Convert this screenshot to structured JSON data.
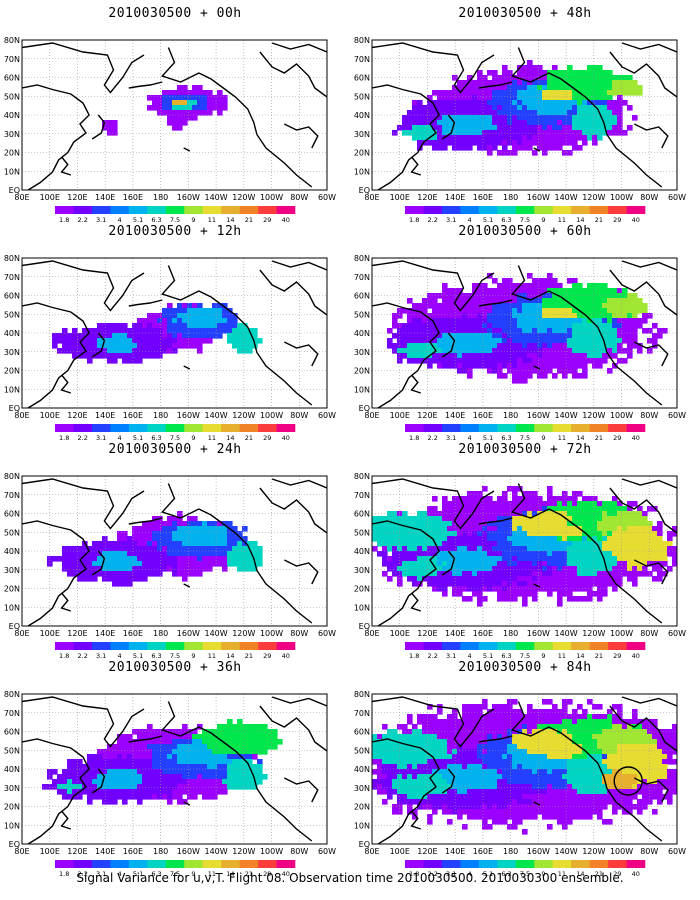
{
  "footer": "Signal Variance for u,v,T. Flight 08. Observation time 2010030500. 2010030300 ensemble.",
  "colorbar": {
    "labels": [
      "1.8",
      "2.2",
      "3.1",
      "4",
      "5.1",
      "6.3",
      "7.5",
      "9",
      "11",
      "14",
      "21",
      "29",
      "40"
    ],
    "colors": [
      "#9b00ff",
      "#7300ff",
      "#2340ff",
      "#0080ff",
      "#00b2ee",
      "#00d4c2",
      "#00e64d",
      "#a0e632",
      "#e6dc32",
      "#e6af2d",
      "#f08228",
      "#fa3c3c",
      "#f00082"
    ]
  },
  "axes": {
    "lon_ticks": [
      "80E",
      "100E",
      "120E",
      "140E",
      "160E",
      "180",
      "160W",
      "140W",
      "120W",
      "100W",
      "80W",
      "60W"
    ],
    "lat_ticks": [
      "80N",
      "70N",
      "60N",
      "50N",
      "40N",
      "30N",
      "20N",
      "10N",
      "EQ"
    ]
  },
  "chart_data": [
    {
      "type": "heatmap",
      "title": "2010030500 + 00h",
      "lead_hours": 0,
      "col": 0,
      "row": 0
    },
    {
      "type": "heatmap",
      "title": "2010030500 + 12h",
      "lead_hours": 12,
      "col": 0,
      "row": 1
    },
    {
      "type": "heatmap",
      "title": "2010030500 + 24h",
      "lead_hours": 24,
      "col": 0,
      "row": 2
    },
    {
      "type": "heatmap",
      "title": "2010030500 + 36h",
      "lead_hours": 36,
      "col": 0,
      "row": 3
    },
    {
      "type": "heatmap",
      "title": "2010030500 + 48h",
      "lead_hours": 48,
      "col": 1,
      "row": 0
    },
    {
      "type": "heatmap",
      "title": "2010030500 + 60h",
      "lead_hours": 60,
      "col": 1,
      "row": 1
    },
    {
      "type": "heatmap",
      "title": "2010030500 + 72h",
      "lead_hours": 72,
      "col": 1,
      "row": 2
    },
    {
      "type": "heatmap",
      "title": "2010030500 + 84h",
      "lead_hours": 84,
      "col": 1,
      "row": 3
    }
  ]
}
